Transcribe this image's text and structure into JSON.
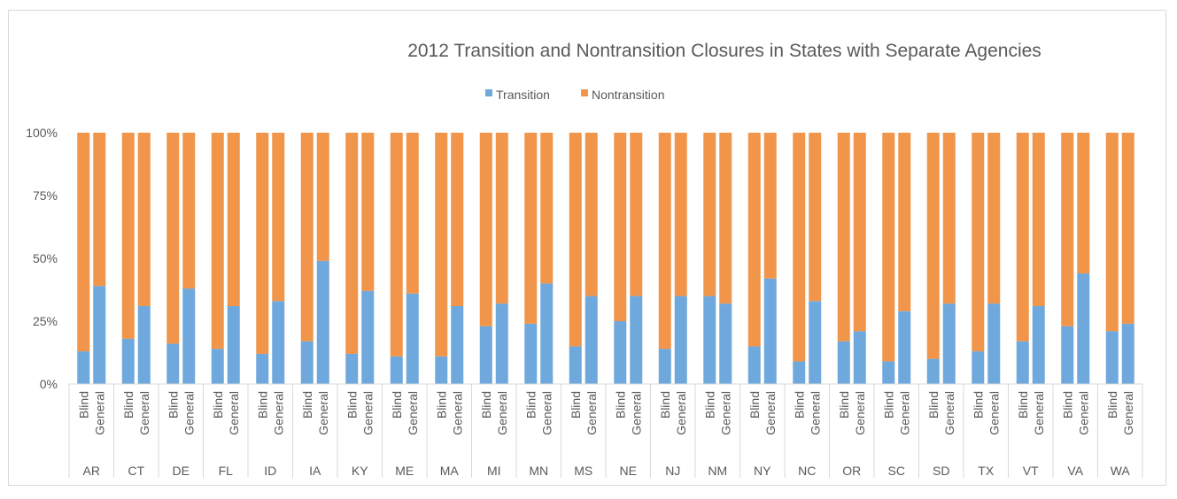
{
  "chart_data": {
    "type": "bar",
    "stacked": "percent",
    "title": "2012 Transition and Nontransition Closures in States with Separate Agencies",
    "legend": {
      "placement": "top-center",
      "entries": [
        "Transition",
        "Nontransition"
      ]
    },
    "colors": {
      "Transition": "#6fa8dc",
      "Nontransition": "#f0954a"
    },
    "y_ticks": [
      "0%",
      "25%",
      "50%",
      "75%",
      "100%"
    ],
    "ylim": [
      0,
      100
    ],
    "grid": false,
    "sub_categories": [
      "Blind",
      "General"
    ],
    "groups": [
      "AR",
      "CT",
      "DE",
      "FL",
      "ID",
      "IA",
      "KY",
      "ME",
      "MA",
      "MI",
      "MN",
      "MS",
      "NE",
      "NJ",
      "NM",
      "NY",
      "NC",
      "OR",
      "SC",
      "SD",
      "TX",
      "VT",
      "VA",
      "WA"
    ],
    "series": [
      {
        "name": "Transition",
        "blind": [
          13,
          18,
          16,
          14,
          12,
          17,
          12,
          11,
          11,
          23,
          24,
          15,
          25,
          14,
          35,
          15,
          9,
          17,
          9,
          10,
          13,
          17,
          23,
          21
        ],
        "general": [
          39,
          31,
          38,
          31,
          33,
          49,
          37,
          36,
          31,
          32,
          40,
          35,
          35,
          35,
          32,
          42,
          33,
          21,
          29,
          32,
          32,
          31,
          44,
          24
        ]
      },
      {
        "name": "Nontransition",
        "blind": [
          87,
          82,
          84,
          86,
          88,
          83,
          88,
          89,
          89,
          77,
          76,
          85,
          75,
          86,
          65,
          85,
          91,
          83,
          91,
          90,
          87,
          83,
          77,
          79
        ],
        "general": [
          61,
          69,
          62,
          69,
          67,
          51,
          63,
          64,
          69,
          68,
          60,
          65,
          65,
          65,
          68,
          58,
          67,
          79,
          71,
          68,
          68,
          69,
          56,
          76
        ]
      }
    ]
  }
}
